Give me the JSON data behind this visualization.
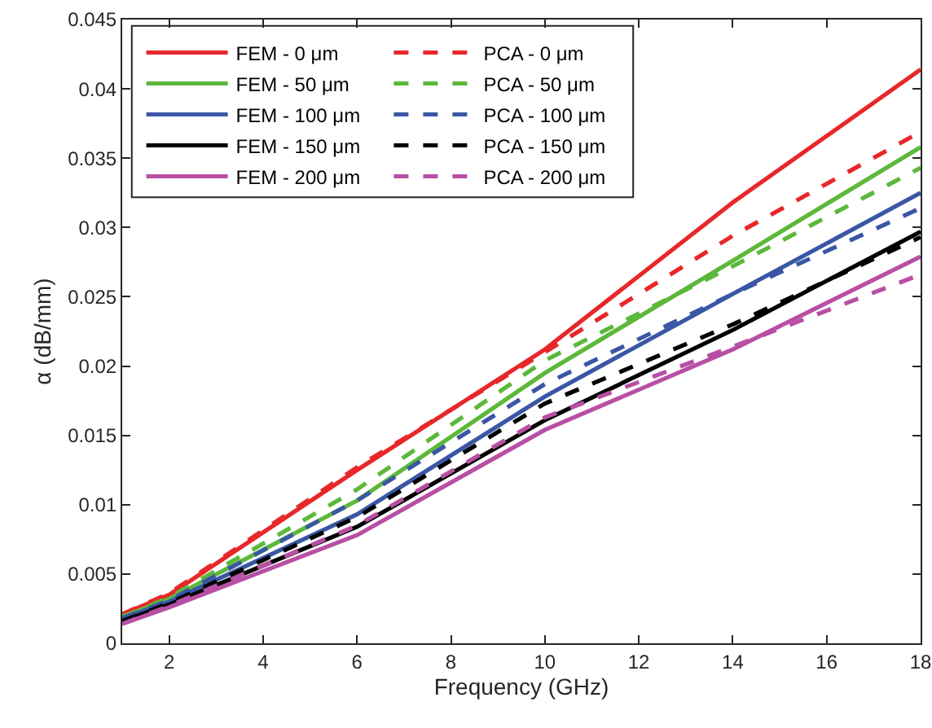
{
  "chart_data": {
    "type": "line",
    "xlabel": "Frequency (GHz)",
    "ylabel": "α (dB/mm)",
    "x": [
      1,
      2,
      6,
      10,
      14,
      18
    ],
    "xlim": [
      1,
      18
    ],
    "xticks": [
      2,
      4,
      6,
      8,
      10,
      12,
      14,
      16,
      18
    ],
    "ylim": [
      0,
      0.045
    ],
    "yticks": [
      0,
      0.005,
      0.01,
      0.015,
      0.02,
      0.025,
      0.03,
      0.035,
      0.04,
      0.045
    ],
    "grid": false,
    "legend": "top left",
    "marker": "none",
    "series": [
      {
        "name": "FEM - 0 μm",
        "color": "#e8272a",
        "line_style": "solid",
        "values": [
          0.0021,
          0.0035,
          0.0125,
          0.0212,
          0.0318,
          0.0414
        ]
      },
      {
        "name": "PCA - 0 μm",
        "color": "#e8272a",
        "line_style": "dashed",
        "values": [
          0.0021,
          0.0036,
          0.0127,
          0.021,
          0.0294,
          0.0369
        ]
      },
      {
        "name": "FEM - 50 μm",
        "color": "#5cb83a",
        "line_style": "solid",
        "values": [
          0.0019,
          0.0032,
          0.0103,
          0.0195,
          0.0276,
          0.0358
        ]
      },
      {
        "name": "PCA - 50 μm",
        "color": "#5cb83a",
        "line_style": "dashed",
        "values": [
          0.0019,
          0.0033,
          0.0111,
          0.0204,
          0.0272,
          0.0343
        ]
      },
      {
        "name": "FEM - 100 μm",
        "color": "#3a56a5",
        "line_style": "solid",
        "values": [
          0.0018,
          0.003,
          0.0093,
          0.0178,
          0.0252,
          0.0325
        ]
      },
      {
        "name": "PCA - 100 μm",
        "color": "#3a56a5",
        "line_style": "dashed",
        "values": [
          0.0018,
          0.0031,
          0.0103,
          0.0187,
          0.0252,
          0.0314
        ]
      },
      {
        "name": "FEM - 150 μm",
        "color": "#000000",
        "line_style": "solid",
        "values": [
          0.0016,
          0.0028,
          0.0084,
          0.0161,
          0.0226,
          0.0297
        ]
      },
      {
        "name": "PCA - 150 μm",
        "color": "#000000",
        "line_style": "dashed",
        "values": [
          0.0016,
          0.0029,
          0.0091,
          0.0173,
          0.023,
          0.0293
        ]
      },
      {
        "name": "FEM - 200 μm",
        "color": "#b84fa4",
        "line_style": "solid",
        "values": [
          0.0014,
          0.0026,
          0.0078,
          0.0154,
          0.0212,
          0.0279
        ]
      },
      {
        "name": "PCA - 200 μm",
        "color": "#b84fa4",
        "line_style": "dashed",
        "values": [
          0.0014,
          0.0027,
          0.0085,
          0.0163,
          0.0214,
          0.0266
        ]
      }
    ]
  }
}
